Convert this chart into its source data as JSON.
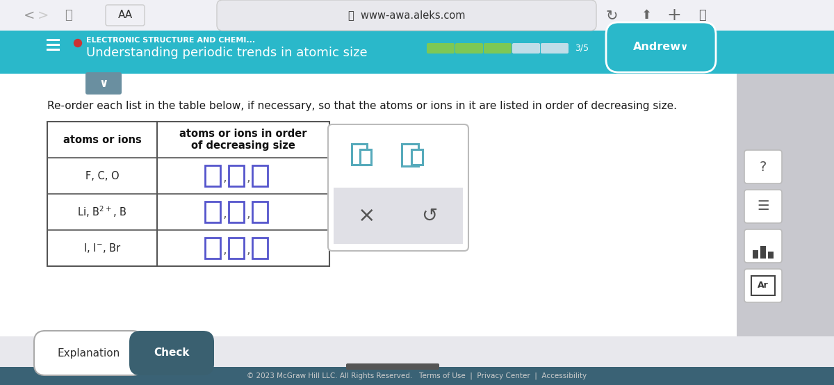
{
  "browser_bg": "#c8c8ce",
  "browser_bar_bg": "#f0f0f5",
  "browser_url": "www-awa.aleks.com",
  "teal_header_bg": "#2ab8ca",
  "header_subtitle": "ELECTRONIC STRUCTURE AND CHEMI...",
  "header_title": "Understanding periodic trends in atomic size",
  "header_user": "Andrew",
  "progress_filled": "#7dc855",
  "progress_empty": "#c0dde8",
  "progress_text": "3/5",
  "main_bg": "#ffffff",
  "main_text": "Re-order each list in the table below, if necessary, so that the atoms or ions in it are listed in order of decreasing size.",
  "table_header1": "atoms or ions",
  "table_header2": "atoms or ions in order\nof decreasing size",
  "box_color": "#5555cc",
  "footer_bg": "#e8e8ed",
  "footer_btn1": "Explanation",
  "footer_btn2": "Check",
  "btn2_bg": "#3a6070",
  "btn1_bg": "#ffffff",
  "popup_icon_color": "#56aabb",
  "side_bg": "#c8c8ce",
  "bottom_bar_bg": "#3a6275",
  "bottom_text_color": "#cccccc",
  "scrollbar_color": "#555555",
  "dropdown_bg": "#6a8fa0",
  "red_dot": "#cc3333"
}
